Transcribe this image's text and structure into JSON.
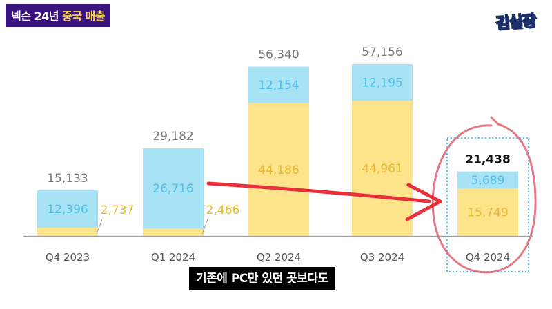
{
  "header": {
    "title_prefix": "넥슨 24년 ",
    "title_highlight": "중국 매출"
  },
  "logo": {
    "text": "김실장"
  },
  "caption": {
    "text": "기존에 PC만 있던 곳보다도"
  },
  "colors": {
    "bottom": "#fde48b",
    "top": "#a8e2f5",
    "total_label": "#7a7a7a",
    "top_label": "#4bbfe8",
    "bottom_label": "#e8b935",
    "axis": "#a5a5a5",
    "arrow": "#e8303a",
    "circle": "#e06070",
    "highlight_box": "#4bbfe8",
    "badge_bg": "#3a1380",
    "badge_highlight": "#ffd84a"
  },
  "chart_data": {
    "type": "bar",
    "stacked": true,
    "categories": [
      "Q4 2023",
      "Q1 2024",
      "Q2 2024",
      "Q3 2024",
      "Q4 2024"
    ],
    "series": [
      {
        "values": [
          2737,
          2466,
          44186,
          44961,
          15749
        ]
      },
      {
        "values": [
          12396,
          26716,
          12154,
          12195,
          5689
        ]
      }
    ],
    "totals": [
      "15,133",
      "29,182",
      "56,340",
      "57,156",
      "21,438"
    ],
    "top_labels": [
      "12,396",
      "26,716",
      "12,154",
      "12,195",
      "5,689"
    ],
    "bottom_labels": [
      "2,737",
      "2,466",
      "44,186",
      "44,961",
      "15,749"
    ],
    "highlight_category": "Q4 2024",
    "title": "",
    "xlabel": "",
    "ylabel": "",
    "ylim": [
      0,
      57156
    ],
    "grid": false
  }
}
